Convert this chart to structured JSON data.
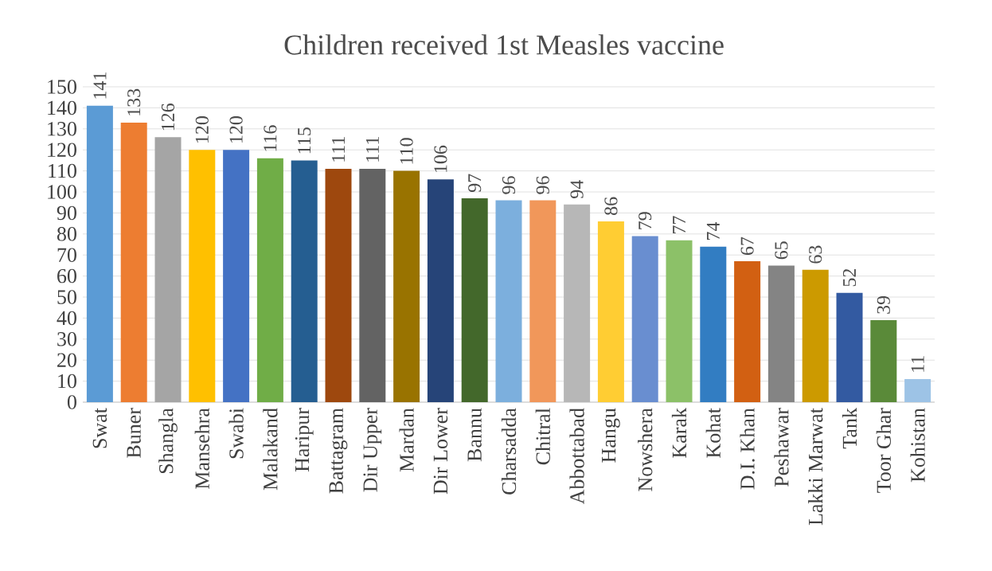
{
  "chart_data": {
    "type": "bar",
    "title": "Children received  1st Measles vaccine",
    "categories": [
      "Swat",
      "Buner",
      "Shangla",
      "Mansehra",
      "Swabi",
      "Malakand",
      "Haripur",
      "Battagram",
      "Dir Upper",
      "Mardan",
      "Dir Lower",
      "Bannu",
      "Charsadda",
      "Chitral",
      "Abbottabad",
      "Hangu",
      "Nowshera",
      "Karak",
      "Kohat",
      "D.I. Khan",
      "Peshawar",
      "Lakki Marwat",
      "Tank",
      "Toor Ghar",
      "Kohistan"
    ],
    "values": [
      141,
      133,
      126,
      120,
      120,
      116,
      115,
      111,
      111,
      110,
      106,
      97,
      96,
      96,
      94,
      86,
      79,
      77,
      74,
      67,
      65,
      63,
      52,
      39,
      11
    ],
    "colors": [
      "#5b9bd5",
      "#ed7d31",
      "#a5a5a5",
      "#ffc000",
      "#4472c4",
      "#70ad47",
      "#255e91",
      "#9e480e",
      "#636363",
      "#997300",
      "#264478",
      "#43682b",
      "#7cafdd",
      "#f1975a",
      "#b7b7b7",
      "#ffcd33",
      "#698ed0",
      "#8cc168",
      "#327dc2",
      "#d26012",
      "#848484",
      "#cc9a00",
      "#335aa1",
      "#5a8a39",
      "#9dc3e6"
    ],
    "ylim": [
      0,
      150
    ],
    "yticks": [
      0,
      10,
      20,
      30,
      40,
      50,
      60,
      70,
      80,
      90,
      100,
      110,
      120,
      130,
      140,
      150
    ],
    "grid": "y",
    "data_labels": true
  }
}
